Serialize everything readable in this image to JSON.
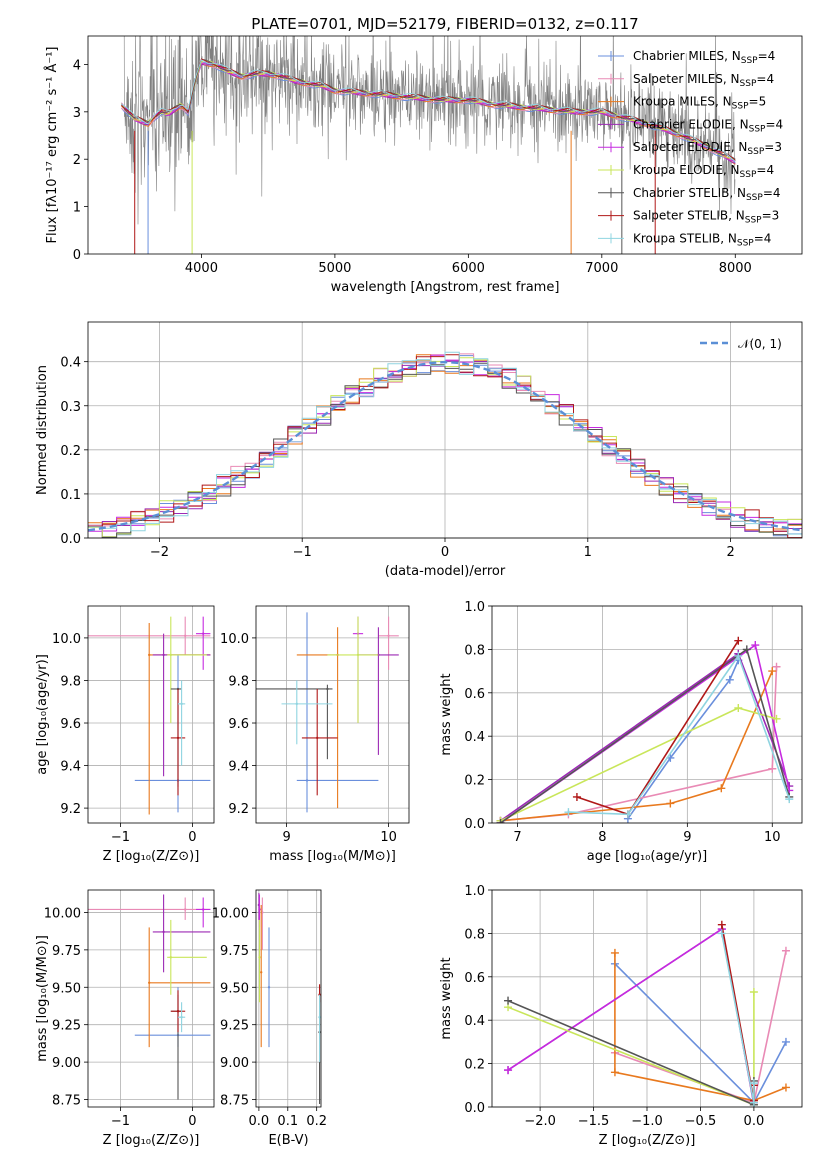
{
  "colors": {
    "chabrier_miles": "#6a8fdc",
    "salpeter_miles": "#e98ab5",
    "kroupa_miles": "#e8791e",
    "chabrier_elodie": "#9c2ab5",
    "salpeter_elodie": "#c62ae0",
    "kroupa_elodie": "#c9e65a",
    "chabrier_stelib": "#555555",
    "salpeter_stelib": "#b01818",
    "kroupa_stelib": "#8fd4e0",
    "observed": "#808080",
    "normal_fit": "#5b8fd6"
  },
  "chart_data": [
    {
      "id": "spectrum",
      "type": "line",
      "title": "PLATE=0701, MJD=52179, FIBERID=0132, z=0.117",
      "xlabel": "wavelength [Angstrom, rest frame]",
      "ylabel": "Flux [fλ10⁻¹⁷ erg cm⁻² s⁻¹ Å⁻¹]",
      "xlim": [
        3150,
        8500
      ],
      "ylim": [
        0,
        4.6
      ],
      "xticks": [
        4000,
        5000,
        6000,
        7000,
        8000
      ],
      "yticks": [
        0,
        1,
        2,
        3,
        4
      ],
      "legend_position": "top-right",
      "legend": [
        {
          "label": "Chabrier MILES, N",
          "sub": "SSP",
          "suffix": "=4",
          "color_key": "chabrier_miles"
        },
        {
          "label": "Salpeter MILES, N",
          "sub": "SSP",
          "suffix": "=4",
          "color_key": "salpeter_miles"
        },
        {
          "label": "Kroupa MILES, N",
          "sub": "SSP",
          "suffix": "=5",
          "color_key": "kroupa_miles"
        },
        {
          "label": "Chabrier ELODIE, N",
          "sub": "SSP",
          "suffix": "=4",
          "color_key": "chabrier_elodie"
        },
        {
          "label": "Salpeter ELODIE, N",
          "sub": "SSP",
          "suffix": "=3",
          "color_key": "salpeter_elodie"
        },
        {
          "label": "Kroupa ELODIE, N",
          "sub": "SSP",
          "suffix": "=4",
          "color_key": "kroupa_elodie"
        },
        {
          "label": "Chabrier STELIB, N",
          "sub": "SSP",
          "suffix": "=4",
          "color_key": "chabrier_stelib"
        },
        {
          "label": "Salpeter STELIB, N",
          "sub": "SSP",
          "suffix": "=3",
          "color_key": "salpeter_stelib"
        },
        {
          "label": "Kroupa STELIB, N",
          "sub": "SSP",
          "suffix": "=4",
          "color_key": "kroupa_stelib"
        }
      ],
      "model_x": [
        3400,
        3450,
        3500,
        3550,
        3600,
        3650,
        3700,
        3750,
        3800,
        3850,
        3900,
        3950,
        4000,
        4100,
        4200,
        4300,
        4400,
        4500,
        4600,
        4700,
        4800,
        4900,
        5000,
        5200,
        5400,
        5600,
        5800,
        6000,
        6200,
        6400,
        6600,
        6800,
        7000,
        7200,
        7400,
        7600,
        7800,
        8000
      ],
      "model_y": [
        3.15,
        3.0,
        2.85,
        2.8,
        2.75,
        2.9,
        3.0,
        2.95,
        3.05,
        3.15,
        3.0,
        3.6,
        4.05,
        4.0,
        3.85,
        3.75,
        3.8,
        3.8,
        3.75,
        3.65,
        3.6,
        3.55,
        3.45,
        3.4,
        3.35,
        3.3,
        3.25,
        3.25,
        3.15,
        3.1,
        3.05,
        3.0,
        3.0,
        2.85,
        2.7,
        2.5,
        2.25,
        1.95
      ]
    },
    {
      "id": "residuals",
      "type": "area",
      "xlabel": "(data-model)/error",
      "ylabel": "Normed distribution",
      "xlim": [
        -2.5,
        2.5
      ],
      "ylim": [
        0,
        0.49
      ],
      "xticks": [
        -2,
        -1,
        0,
        1,
        2
      ],
      "yticks": [
        0.0,
        0.1,
        0.2,
        0.3,
        0.4
      ],
      "legend_position": "top-right",
      "legend": [
        {
          "label": "𝒩(0, 1)",
          "color_key": "normal_fit"
        }
      ],
      "normal_mu": 0,
      "normal_sigma": 1
    },
    {
      "id": "age_vs_Z",
      "type": "scatter",
      "xlabel": "Z [log₁₀(Z/Z⊙)]",
      "ylabel": "age  [log₁₀(age/yr)]",
      "xlim": [
        -1.45,
        0.3
      ],
      "ylim": [
        9.13,
        10.15
      ],
      "xticks": [
        -1,
        0
      ],
      "yticks": [
        9.2,
        9.4,
        9.6,
        9.8,
        10.0
      ],
      "points": [
        {
          "k": "chabrier_miles",
          "x": -0.2,
          "y": 9.33,
          "xe": [
            -0.8,
            0.25
          ],
          "ye": [
            9.18,
            9.92
          ]
        },
        {
          "k": "salpeter_miles",
          "x": -0.1,
          "y": 10.01,
          "xe": [
            -1.45,
            0.25
          ],
          "ye": [
            9.92,
            10.1
          ]
        },
        {
          "k": "kroupa_miles",
          "x": -0.6,
          "y": 9.92,
          "xe": [
            -0.6,
            0.25
          ],
          "ye": [
            9.17,
            10.07
          ]
        },
        {
          "k": "chabrier_elodie",
          "x": -0.4,
          "y": 9.92,
          "xe": [
            -0.55,
            0.25
          ],
          "ye": [
            9.35,
            10.02
          ]
        },
        {
          "k": "salpeter_elodie",
          "x": 0.15,
          "y": 10.02,
          "xe": [
            0.05,
            0.25
          ],
          "ye": [
            9.85,
            10.1
          ]
        },
        {
          "k": "kroupa_elodie",
          "x": -0.3,
          "y": 9.92,
          "xe": [
            -0.35,
            0.2
          ],
          "ye": [
            9.6,
            10.1
          ]
        },
        {
          "k": "chabrier_stelib",
          "x": -0.2,
          "y": 9.76,
          "xe": [
            -0.3,
            -0.15
          ],
          "ye": [
            9.3,
            9.76
          ]
        },
        {
          "k": "salpeter_stelib",
          "x": -0.2,
          "y": 9.53,
          "xe": [
            -0.3,
            -0.1
          ],
          "ye": [
            9.26,
            9.76
          ]
        },
        {
          "k": "kroupa_stelib",
          "x": -0.15,
          "y": 9.69,
          "xe": [
            -0.2,
            -0.1
          ],
          "ye": [
            9.4,
            9.8
          ]
        }
      ]
    },
    {
      "id": "age_vs_mass",
      "type": "scatter",
      "xlabel": "mass [log₁₀(M/M⊙)]",
      "ylabel": "",
      "xlim": [
        8.7,
        10.2
      ],
      "ylim": [
        9.13,
        10.15
      ],
      "xticks": [
        9,
        10
      ],
      "yticks": [
        9.2,
        9.4,
        9.6,
        9.8,
        10.0
      ],
      "points": [
        {
          "k": "chabrier_miles",
          "x": 9.2,
          "y": 9.33,
          "xe": [
            9.1,
            9.9
          ],
          "ye": [
            9.18,
            10.12
          ]
        },
        {
          "k": "salpeter_miles",
          "x": 10.0,
          "y": 10.01,
          "xe": [
            9.9,
            10.1
          ],
          "ye": [
            9.85,
            10.1
          ]
        },
        {
          "k": "kroupa_miles",
          "x": 9.5,
          "y": 9.92,
          "xe": [
            9.1,
            9.5
          ],
          "ye": [
            9.2,
            10.05
          ]
        },
        {
          "k": "chabrier_elodie",
          "x": 9.9,
          "y": 9.92,
          "xe": [
            9.7,
            10.1
          ],
          "ye": [
            9.45,
            10.05
          ]
        },
        {
          "k": "salpeter_elodie",
          "x": 9.7,
          "y": 10.02,
          "xe": [
            9.65,
            9.75
          ],
          "ye": [
            9.6,
            10.1
          ]
        },
        {
          "k": "kroupa_elodie",
          "x": 9.7,
          "y": 9.92,
          "xe": [
            9.4,
            9.9
          ],
          "ye": [
            9.6,
            10.1
          ]
        },
        {
          "k": "chabrier_stelib",
          "x": 9.4,
          "y": 9.76,
          "xe": [
            8.7,
            9.45
          ],
          "ye": [
            9.43,
            9.78
          ]
        },
        {
          "k": "salpeter_stelib",
          "x": 9.3,
          "y": 9.53,
          "xe": [
            9.15,
            9.5
          ],
          "ye": [
            9.26,
            9.76
          ]
        },
        {
          "k": "kroupa_stelib",
          "x": 9.1,
          "y": 9.69,
          "xe": [
            8.95,
            9.45
          ],
          "ye": [
            9.5,
            9.8
          ]
        }
      ]
    },
    {
      "id": "massweight_vs_age",
      "type": "line",
      "xlabel": "age  [log₁₀(age/yr)]",
      "ylabel": "mass weight",
      "xlim": [
        6.7,
        10.35
      ],
      "ylim": [
        0,
        1.0
      ],
      "xticks": [
        7,
        8,
        9,
        10
      ],
      "yticks": [
        0.0,
        0.2,
        0.4,
        0.6,
        0.8,
        1.0
      ],
      "series": [
        {
          "k": "chabrier_miles",
          "pts": [
            [
              8.3,
              0.02
            ],
            [
              8.8,
              0.3
            ],
            [
              9.5,
              0.66
            ],
            [
              9.6,
              0.75
            ]
          ]
        },
        {
          "k": "salpeter_miles",
          "pts": [
            [
              6.8,
              0.01
            ],
            [
              7.6,
              0.04
            ],
            [
              10.0,
              0.25
            ],
            [
              10.05,
              0.72
            ]
          ]
        },
        {
          "k": "kroupa_miles",
          "pts": [
            [
              6.8,
              0.01
            ],
            [
              8.8,
              0.09
            ],
            [
              9.4,
              0.16
            ],
            [
              10.0,
              0.7
            ]
          ]
        },
        {
          "k": "chabrier_elodie",
          "pts": [
            [
              6.8,
              0.01
            ],
            [
              9.6,
              0.78
            ],
            [
              10.2,
              0.17
            ]
          ]
        },
        {
          "k": "salpeter_elodie",
          "pts": [
            [
              6.8,
              0.0
            ],
            [
              9.8,
              0.82
            ],
            [
              10.2,
              0.15
            ]
          ]
        },
        {
          "k": "kroupa_elodie",
          "pts": [
            [
              6.8,
              0.01
            ],
            [
              9.6,
              0.53
            ],
            [
              10.05,
              0.48
            ]
          ]
        },
        {
          "k": "chabrier_stelib",
          "pts": [
            [
              6.8,
              0.0
            ],
            [
              9.7,
              0.8
            ],
            [
              10.2,
              0.12
            ]
          ]
        },
        {
          "k": "salpeter_stelib",
          "pts": [
            [
              7.7,
              0.12
            ],
            [
              8.3,
              0.04
            ],
            [
              9.6,
              0.84
            ]
          ]
        },
        {
          "k": "kroupa_stelib",
          "pts": [
            [
              7.6,
              0.05
            ],
            [
              8.3,
              0.04
            ],
            [
              9.6,
              0.77
            ],
            [
              10.2,
              0.11
            ]
          ]
        }
      ]
    },
    {
      "id": "mass_vs_Z",
      "type": "scatter",
      "xlabel": "Z [log₁₀(Z/Z⊙)]",
      "ylabel": "mass [log₁₀(M/M⊙)]",
      "xlim": [
        -1.45,
        0.3
      ],
      "ylim": [
        8.7,
        10.15
      ],
      "xticks": [
        -1,
        0
      ],
      "yticks": [
        8.75,
        9.0,
        9.25,
        9.5,
        9.75,
        10.0
      ],
      "points": [
        {
          "k": "chabrier_miles",
          "x": -0.2,
          "y": 9.18,
          "xe": [
            -0.8,
            0.25
          ],
          "ye": [
            9.1,
            9.5
          ]
        },
        {
          "k": "salpeter_miles",
          "x": -0.1,
          "y": 10.02,
          "xe": [
            -1.45,
            0.25
          ],
          "ye": [
            9.95,
            10.1
          ]
        },
        {
          "k": "kroupa_miles",
          "x": -0.6,
          "y": 9.53,
          "xe": [
            -0.6,
            0.25
          ],
          "ye": [
            9.1,
            9.9
          ]
        },
        {
          "k": "chabrier_elodie",
          "x": -0.4,
          "y": 9.87,
          "xe": [
            -0.55,
            0.25
          ],
          "ye": [
            9.6,
            10.12
          ]
        },
        {
          "k": "salpeter_elodie",
          "x": 0.15,
          "y": 10.02,
          "xe": [
            0.05,
            0.25
          ],
          "ye": [
            9.9,
            10.1
          ]
        },
        {
          "k": "kroupa_elodie",
          "x": -0.3,
          "y": 9.7,
          "xe": [
            -0.35,
            0.2
          ],
          "ye": [
            9.45,
            9.95
          ]
        },
        {
          "k": "chabrier_stelib",
          "x": -0.2,
          "y": 9.34,
          "xe": [
            -0.3,
            -0.15
          ],
          "ye": [
            8.75,
            9.45
          ]
        },
        {
          "k": "salpeter_stelib",
          "x": -0.2,
          "y": 9.34,
          "xe": [
            -0.3,
            -0.1
          ],
          "ye": [
            9.2,
            9.48
          ]
        },
        {
          "k": "kroupa_stelib",
          "x": -0.15,
          "y": 9.3,
          "xe": [
            -0.2,
            -0.1
          ],
          "ye": [
            9.2,
            9.4
          ]
        }
      ]
    },
    {
      "id": "mass_vs_EBV",
      "type": "scatter",
      "xlabel": "E(B-V)",
      "ylabel": "",
      "xlim": [
        -0.01,
        0.215
      ],
      "ylim": [
        8.7,
        10.15
      ],
      "xticks": [
        0.0,
        0.1,
        0.2
      ],
      "yticks": [
        8.75,
        9.0,
        9.25,
        9.5,
        9.75,
        10.0
      ],
      "points": [
        {
          "k": "chabrier_miles",
          "x": 0.035,
          "y": 9.5,
          "xe": null,
          "ye": [
            9.1,
            9.9
          ]
        },
        {
          "k": "salpeter_miles",
          "x": 0.012,
          "y": 10.0,
          "xe": null,
          "ye": [
            9.75,
            10.1
          ]
        },
        {
          "k": "kroupa_miles",
          "x": 0.008,
          "y": 9.6,
          "xe": null,
          "ye": [
            9.1,
            10.05
          ]
        },
        {
          "k": "chabrier_elodie",
          "x": 0.0,
          "y": 10.05,
          "xe": null,
          "ye": [
            9.95,
            10.13
          ]
        },
        {
          "k": "salpeter_elodie",
          "x": 0.002,
          "y": 10.02,
          "xe": null,
          "ye": [
            9.9,
            10.12
          ]
        },
        {
          "k": "kroupa_elodie",
          "x": 0.002,
          "y": 9.7,
          "xe": null,
          "ye": [
            9.4,
            9.95
          ]
        },
        {
          "k": "chabrier_stelib",
          "x": 0.21,
          "y": 9.2,
          "xe": null,
          "ye": [
            8.72,
            9.45
          ]
        },
        {
          "k": "salpeter_stelib",
          "x": 0.21,
          "y": 9.45,
          "xe": null,
          "ye": [
            9.4,
            9.52
          ]
        },
        {
          "k": "kroupa_stelib",
          "x": 0.21,
          "y": 9.3,
          "xe": null,
          "ye": [
            9.0,
            9.45
          ]
        }
      ]
    },
    {
      "id": "massweight_vs_Z",
      "type": "line",
      "xlabel": "Z [log₁₀(Z/Z⊙)]",
      "ylabel": "mass weight",
      "xlim": [
        -2.45,
        0.45
      ],
      "ylim": [
        0,
        1.0
      ],
      "xticks": [
        -2.0,
        -1.5,
        -1.0,
        -0.5,
        0.0
      ],
      "yticks": [
        0.0,
        0.2,
        0.4,
        0.6,
        0.8,
        1.0
      ],
      "series": [
        {
          "k": "chabrier_miles",
          "pts": [
            [
              -1.3,
              0.66
            ],
            [
              0.0,
              0.02
            ],
            [
              0.3,
              0.3
            ]
          ]
        },
        {
          "k": "salpeter_miles",
          "pts": [
            [
              -1.3,
              0.25
            ],
            [
              0.0,
              0.02
            ],
            [
              0.3,
              0.72
            ]
          ]
        },
        {
          "k": "kroupa_miles",
          "pts": [
            [
              -1.3,
              0.71
            ],
            [
              -1.3,
              0.16
            ],
            [
              0.0,
              0.03
            ],
            [
              0.3,
              0.09
            ]
          ]
        },
        {
          "k": "chabrier_elodie",
          "pts": [
            [
              -2.3,
              0.17
            ],
            [
              -0.3,
              0.82
            ],
            [
              0.0,
              0.01
            ]
          ]
        },
        {
          "k": "salpeter_elodie",
          "pts": [
            [
              -2.3,
              0.17
            ],
            [
              -0.3,
              0.82
            ],
            [
              0.0,
              0.02
            ]
          ]
        },
        {
          "k": "kroupa_elodie",
          "pts": [
            [
              -2.3,
              0.46
            ],
            [
              0.0,
              0.01
            ],
            [
              0.0,
              0.53
            ]
          ]
        },
        {
          "k": "chabrier_stelib",
          "pts": [
            [
              -2.3,
              0.49
            ],
            [
              0.0,
              0.01
            ],
            [
              0.0,
              0.12
            ]
          ]
        },
        {
          "k": "salpeter_stelib",
          "pts": [
            [
              -0.3,
              0.84
            ],
            [
              0.0,
              0.03
            ],
            [
              0.0,
              0.1
            ]
          ]
        },
        {
          "k": "kroupa_stelib",
          "pts": [
            [
              -0.3,
              0.8
            ],
            [
              0.0,
              0.02
            ],
            [
              0.0,
              0.11
            ]
          ]
        }
      ]
    }
  ]
}
